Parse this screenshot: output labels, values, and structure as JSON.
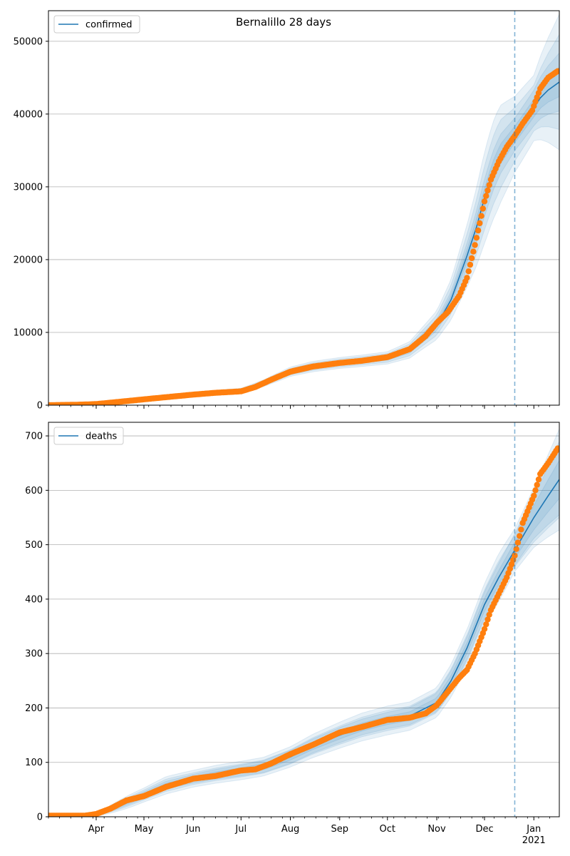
{
  "title": "Bernalillo 28 days",
  "colors": {
    "model_line": "#1f77b4",
    "band": "#1f77b4",
    "observed": "#ff7f0e",
    "vline": "#1f77b4",
    "grid": "#b0b0b0"
  },
  "x_ticks": [
    {
      "date": "2020-04-01",
      "label": "Apr"
    },
    {
      "date": "2020-05-01",
      "label": "May"
    },
    {
      "date": "2020-06-01",
      "label": "Jun"
    },
    {
      "date": "2020-07-01",
      "label": "Jul"
    },
    {
      "date": "2020-08-01",
      "label": "Aug"
    },
    {
      "date": "2020-09-01",
      "label": "Sep"
    },
    {
      "date": "2020-10-01",
      "label": "Oct"
    },
    {
      "date": "2020-11-01",
      "label": "Nov"
    },
    {
      "date": "2020-12-01",
      "label": "Dec"
    },
    {
      "date": "2021-01-01",
      "label": "Jan"
    }
  ],
  "x_year_label": "2021",
  "chart_data": [
    {
      "type": "line",
      "legend": "confirmed",
      "legend_position": "top-left",
      "grid": "horizontal",
      "xlim": [
        "2020-03-02",
        "2021-01-17"
      ],
      "ylim": [
        0,
        54200
      ],
      "yticks": [
        0,
        10000,
        20000,
        30000,
        40000,
        50000
      ],
      "forecast_start": "2020-12-20",
      "model": {
        "x": [
          "2020-03-02",
          "2020-03-15",
          "2020-04-01",
          "2020-04-15",
          "2020-05-01",
          "2020-05-15",
          "2020-06-01",
          "2020-06-15",
          "2020-07-01",
          "2020-07-15",
          "2020-08-01",
          "2020-08-15",
          "2020-09-01",
          "2020-09-15",
          "2020-10-01",
          "2020-10-15",
          "2020-11-01",
          "2020-11-10",
          "2020-11-20",
          "2020-11-26",
          "2020-12-01",
          "2020-12-06",
          "2020-12-11",
          "2020-12-16",
          "2020-12-20",
          "2020-12-25",
          "2020-12-31",
          "2021-01-05",
          "2021-01-10",
          "2021-01-17"
        ],
        "y": [
          0,
          50,
          150,
          450,
          800,
          1150,
          1500,
          1750,
          2000,
          3000,
          4600,
          5300,
          5800,
          6100,
          6500,
          7600,
          11000,
          14500,
          20500,
          24500,
          28500,
          32000,
          34500,
          36000,
          37200,
          38700,
          40500,
          42200,
          43300,
          44400
        ]
      },
      "band_x": [
        "2020-03-02",
        "2020-04-01",
        "2020-05-01",
        "2020-06-01",
        "2020-07-01",
        "2020-08-01",
        "2020-09-01",
        "2020-10-01",
        "2020-10-15",
        "2020-11-01",
        "2020-11-15",
        "2020-11-26",
        "2020-12-01",
        "2020-12-10",
        "2020-12-20",
        "2021-01-01",
        "2021-01-17"
      ],
      "band_ratio_inner": [
        0.18,
        0.1,
        0.08,
        0.06,
        0.06,
        0.05,
        0.05,
        0.05,
        0.06,
        0.07,
        0.08,
        0.09,
        0.09,
        0.08,
        0.06,
        0.06,
        0.09
      ],
      "band_ratio_outer": [
        0.4,
        0.3,
        0.24,
        0.18,
        0.16,
        0.14,
        0.13,
        0.13,
        0.15,
        0.18,
        0.2,
        0.22,
        0.22,
        0.2,
        0.14,
        0.11,
        0.21
      ],
      "observed": {
        "x": [
          "2020-03-02",
          "2020-03-20",
          "2020-04-01",
          "2020-04-15",
          "2020-05-01",
          "2020-05-15",
          "2020-06-01",
          "2020-06-15",
          "2020-07-01",
          "2020-07-10",
          "2020-07-20",
          "2020-08-01",
          "2020-08-15",
          "2020-09-01",
          "2020-09-15",
          "2020-10-01",
          "2020-10-15",
          "2020-10-25",
          "2020-11-01",
          "2020-11-08",
          "2020-11-15",
          "2020-11-20",
          "2020-11-25",
          "2020-12-01",
          "2020-12-05",
          "2020-12-10",
          "2020-12-15",
          "2020-12-20",
          "2020-12-25",
          "2020-12-31",
          "2021-01-05",
          "2021-01-10",
          "2021-01-16"
        ],
        "y": [
          0,
          60,
          150,
          450,
          800,
          1100,
          1450,
          1700,
          1900,
          2500,
          3500,
          4600,
          5300,
          5800,
          6100,
          6600,
          7700,
          9500,
          11300,
          12800,
          15000,
          17500,
          22000,
          28000,
          31000,
          33500,
          35500,
          37000,
          38700,
          40500,
          43500,
          45000,
          45900
        ]
      }
    },
    {
      "type": "line",
      "legend": "deaths",
      "legend_position": "top-left",
      "grid": "horizontal",
      "xlim": [
        "2020-03-02",
        "2021-01-17"
      ],
      "ylim": [
        0,
        725
      ],
      "yticks": [
        0,
        100,
        200,
        300,
        400,
        500,
        600,
        700
      ],
      "forecast_start": "2020-12-20",
      "model": {
        "x": [
          "2020-03-02",
          "2020-03-15",
          "2020-03-25",
          "2020-04-01",
          "2020-04-15",
          "2020-05-01",
          "2020-05-15",
          "2020-06-01",
          "2020-06-15",
          "2020-07-01",
          "2020-07-15",
          "2020-08-01",
          "2020-08-15",
          "2020-09-01",
          "2020-09-15",
          "2020-10-01",
          "2020-10-15",
          "2020-11-01",
          "2020-11-10",
          "2020-11-20",
          "2020-12-01",
          "2020-12-10",
          "2020-12-20",
          "2021-01-01",
          "2021-01-10",
          "2021-01-17"
        ],
        "y": [
          0,
          0,
          0,
          3,
          20,
          40,
          58,
          70,
          78,
          85,
          92,
          110,
          130,
          150,
          165,
          177,
          185,
          210,
          250,
          310,
          390,
          440,
          490,
          550,
          590,
          620
        ]
      },
      "band_x": [
        "2020-03-02",
        "2020-04-01",
        "2020-05-01",
        "2020-06-01",
        "2020-07-01",
        "2020-08-01",
        "2020-09-01",
        "2020-10-01",
        "2020-11-01",
        "2020-11-20",
        "2020-12-01",
        "2020-12-10",
        "2020-12-20",
        "2021-01-01",
        "2021-01-17"
      ],
      "band_min": [
        0,
        0,
        6,
        8,
        10,
        12,
        14,
        15,
        17,
        20,
        24,
        26,
        30,
        45,
        70
      ],
      "band_ratio_inner": [
        0,
        0.3,
        0.15,
        0.1,
        0.09,
        0.08,
        0.07,
        0.07,
        0.06,
        0.05,
        0.05,
        0.05,
        0.04,
        0.04,
        0.04
      ],
      "band_ratio_outer": [
        0,
        0.6,
        0.32,
        0.22,
        0.2,
        0.17,
        0.16,
        0.15,
        0.13,
        0.11,
        0.1,
        0.1,
        0.08,
        0.1,
        0.15
      ],
      "observed": {
        "x": [
          "2020-03-02",
          "2020-03-15",
          "2020-03-25",
          "2020-04-01",
          "2020-04-10",
          "2020-04-20",
          "2020-05-01",
          "2020-05-15",
          "2020-06-01",
          "2020-06-15",
          "2020-07-01",
          "2020-07-10",
          "2020-07-20",
          "2020-08-01",
          "2020-08-15",
          "2020-09-01",
          "2020-09-15",
          "2020-10-01",
          "2020-10-15",
          "2020-10-25",
          "2020-11-01",
          "2020-11-08",
          "2020-11-15",
          "2020-11-20",
          "2020-11-25",
          "2020-12-01",
          "2020-12-05",
          "2020-12-10",
          "2020-12-15",
          "2020-12-20",
          "2020-12-25",
          "2021-01-01",
          "2021-01-05",
          "2021-01-10",
          "2021-01-16"
        ],
        "y": [
          2,
          2,
          2,
          5,
          15,
          30,
          38,
          55,
          70,
          75,
          85,
          87,
          98,
          115,
          132,
          155,
          165,
          178,
          182,
          190,
          205,
          230,
          255,
          270,
          300,
          345,
          380,
          410,
          440,
          480,
          540,
          590,
          630,
          650,
          677
        ]
      }
    }
  ]
}
